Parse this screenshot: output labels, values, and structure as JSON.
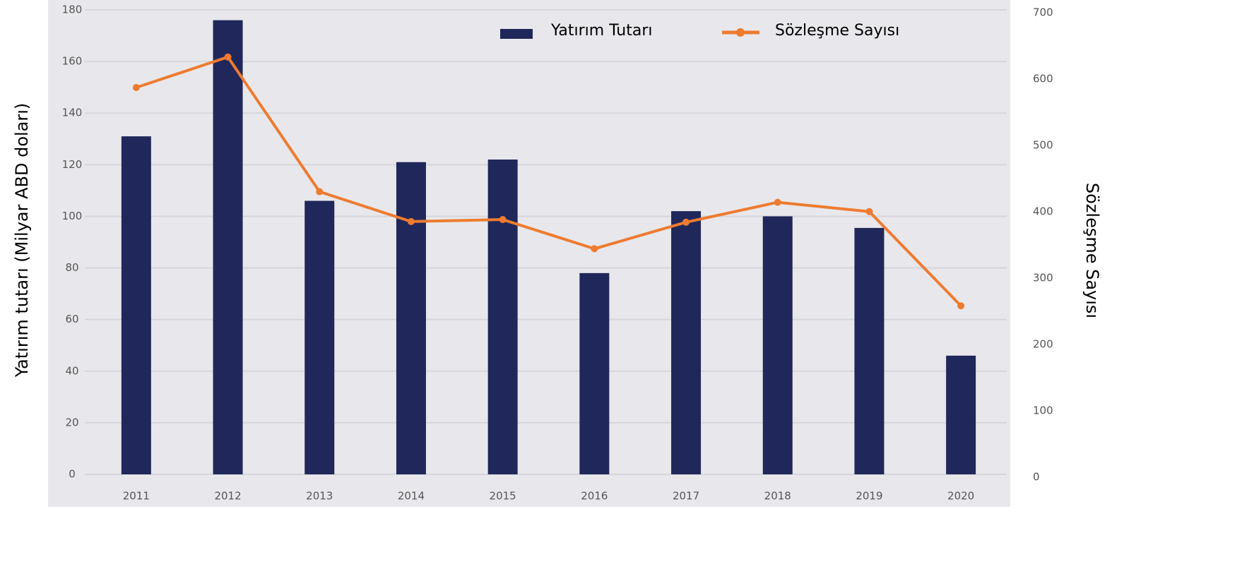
{
  "chart_data": {
    "type": "bar_line",
    "categories": [
      "2011",
      "2012",
      "2013",
      "2014",
      "2015",
      "2016",
      "2017",
      "2018",
      "2019",
      "2020"
    ],
    "series": [
      {
        "name": "Yatırım Tutarı",
        "color": "#20275a",
        "type": "bar",
        "values": [
          131,
          176,
          106,
          121,
          122,
          78,
          102,
          100,
          95.5,
          46
        ]
      },
      {
        "name": "Sözleşme Sayısı",
        "color": "#ee7b30",
        "type": "line",
        "axis": "y2",
        "values": [
          583,
          629,
          426,
          381,
          384,
          340,
          380,
          410,
          396,
          254
        ]
      }
    ],
    "ylabel": "Yatırım tutarı (Milyar ABD doları)",
    "y2label": "Sözleşme Sayısı",
    "ylim": [
      0,
      180
    ],
    "yticks": [
      0,
      20,
      40,
      60,
      80,
      100,
      120,
      140,
      160,
      180
    ],
    "y2lim": [
      0,
      700
    ],
    "y2ticks": [
      0,
      100,
      200,
      300,
      400,
      500,
      600,
      700
    ],
    "grid": true
  }
}
